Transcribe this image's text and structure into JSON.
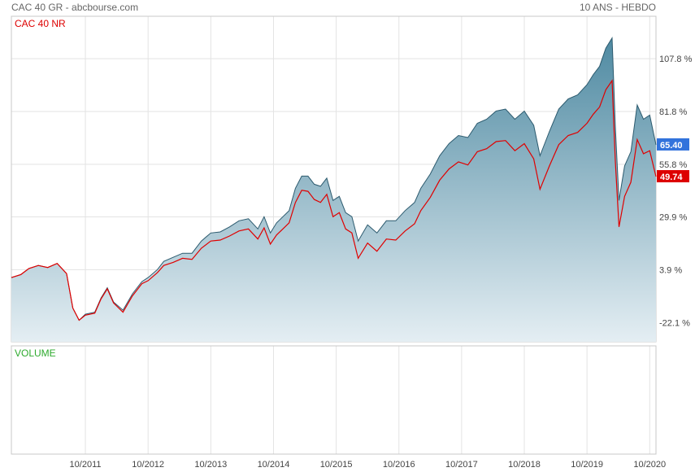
{
  "header": {
    "title": "CAC 40 GR - abcbourse.com",
    "period": "10 ANS - HEBDO"
  },
  "colors": {
    "gr_line": "#2c5a6e",
    "gr_fill_top": "#4f8aa2",
    "gr_fill_bottom": "#e4eef3",
    "nr_line": "#e00000",
    "gr_tag": "#3273dc",
    "nr_tag": "#dd0000",
    "volume_label": "#2eaa2e",
    "nr_label": "#dd0000",
    "grid": "#e3e3e3"
  },
  "chart_data": {
    "type": "area",
    "title": "CAC 40 GR - abcbourse.com",
    "subtitle": "10 ANS - HEBDO",
    "y_unit": "%",
    "ylim": [
      -31.6,
      128.7
    ],
    "y_ticks": [
      107.8,
      81.8,
      55.8,
      29.9,
      3.9,
      -22.1
    ],
    "y_tick_labels": [
      "107.8 %",
      "81.8 %",
      "55.8 %",
      "29.9 %",
      "3.9 %",
      "-22.1 %"
    ],
    "x_ticks": [
      "10/2011",
      "10/2012",
      "10/2013",
      "10/2014",
      "10/2015",
      "10/2016",
      "10/2017",
      "10/2018",
      "10/2019",
      "10/2020"
    ],
    "x_range": [
      2010.57,
      2020.85
    ],
    "series": [
      {
        "name": "CAC 40 GR",
        "last_value": "65.40",
        "points": [
          [
            2010.57,
            0.0
          ],
          [
            2010.72,
            1.5
          ],
          [
            2010.85,
            4.5
          ],
          [
            2011.0,
            6.0
          ],
          [
            2011.15,
            5.0
          ],
          [
            2011.3,
            7.0
          ],
          [
            2011.45,
            2.0
          ],
          [
            2011.55,
            -15.0
          ],
          [
            2011.65,
            -21.0
          ],
          [
            2011.75,
            -18.0
          ],
          [
            2011.9,
            -17.0
          ],
          [
            2012.0,
            -10.0
          ],
          [
            2012.1,
            -5.0
          ],
          [
            2012.2,
            -12.0
          ],
          [
            2012.35,
            -16.0
          ],
          [
            2012.5,
            -8.0
          ],
          [
            2012.65,
            -2.0
          ],
          [
            2012.75,
            0.0
          ],
          [
            2012.9,
            4.0
          ],
          [
            2013.0,
            8.0
          ],
          [
            2013.15,
            10.0
          ],
          [
            2013.3,
            12.0
          ],
          [
            2013.45,
            12.0
          ],
          [
            2013.6,
            18.0
          ],
          [
            2013.75,
            22.0
          ],
          [
            2013.9,
            22.5
          ],
          [
            2014.05,
            25.0
          ],
          [
            2014.2,
            28.0
          ],
          [
            2014.35,
            29.0
          ],
          [
            2014.5,
            24.0
          ],
          [
            2014.6,
            30.0
          ],
          [
            2014.7,
            22.0
          ],
          [
            2014.8,
            27.0
          ],
          [
            2014.9,
            30.0
          ],
          [
            2015.0,
            33.0
          ],
          [
            2015.1,
            44.0
          ],
          [
            2015.2,
            50.0
          ],
          [
            2015.3,
            50.0
          ],
          [
            2015.4,
            46.0
          ],
          [
            2015.5,
            45.0
          ],
          [
            2015.6,
            49.0
          ],
          [
            2015.7,
            38.0
          ],
          [
            2015.8,
            40.0
          ],
          [
            2015.9,
            32.0
          ],
          [
            2016.0,
            30.0
          ],
          [
            2016.1,
            18.0
          ],
          [
            2016.25,
            26.0
          ],
          [
            2016.4,
            22.0
          ],
          [
            2016.55,
            28.0
          ],
          [
            2016.7,
            28.0
          ],
          [
            2016.85,
            33.0
          ],
          [
            2017.0,
            37.0
          ],
          [
            2017.1,
            44.0
          ],
          [
            2017.25,
            51.0
          ],
          [
            2017.4,
            60.0
          ],
          [
            2017.55,
            66.0
          ],
          [
            2017.7,
            70.0
          ],
          [
            2017.85,
            69.0
          ],
          [
            2018.0,
            76.0
          ],
          [
            2018.15,
            78.0
          ],
          [
            2018.3,
            82.0
          ],
          [
            2018.45,
            83.0
          ],
          [
            2018.6,
            78.0
          ],
          [
            2018.75,
            82.0
          ],
          [
            2018.9,
            75.0
          ],
          [
            2019.0,
            60.0
          ],
          [
            2019.15,
            72.0
          ],
          [
            2019.3,
            83.0
          ],
          [
            2019.45,
            88.0
          ],
          [
            2019.6,
            90.0
          ],
          [
            2019.75,
            95.0
          ],
          [
            2019.85,
            100.0
          ],
          [
            2019.95,
            104.0
          ],
          [
            2020.05,
            113.0
          ],
          [
            2020.15,
            118.0
          ],
          [
            2020.2,
            75.0
          ],
          [
            2020.26,
            38.0
          ],
          [
            2020.35,
            55.0
          ],
          [
            2020.45,
            62.0
          ],
          [
            2020.55,
            85.0
          ],
          [
            2020.65,
            78.0
          ],
          [
            2020.75,
            80.0
          ],
          [
            2020.85,
            65.4
          ]
        ]
      },
      {
        "name": "CAC 40 NR",
        "last_value": "49.74",
        "points": [
          [
            2010.57,
            0.0
          ],
          [
            2010.72,
            1.5
          ],
          [
            2010.85,
            4.5
          ],
          [
            2011.0,
            6.0
          ],
          [
            2011.15,
            5.0
          ],
          [
            2011.3,
            7.0
          ],
          [
            2011.45,
            2.0
          ],
          [
            2011.55,
            -15.0
          ],
          [
            2011.65,
            -21.0
          ],
          [
            2011.75,
            -18.5
          ],
          [
            2011.9,
            -17.5
          ],
          [
            2012.0,
            -10.5
          ],
          [
            2012.1,
            -5.5
          ],
          [
            2012.2,
            -12.5
          ],
          [
            2012.35,
            -17.0
          ],
          [
            2012.5,
            -9.0
          ],
          [
            2012.65,
            -3.0
          ],
          [
            2012.75,
            -1.5
          ],
          [
            2012.9,
            2.5
          ],
          [
            2013.0,
            6.0
          ],
          [
            2013.15,
            7.5
          ],
          [
            2013.3,
            9.5
          ],
          [
            2013.45,
            9.0
          ],
          [
            2013.6,
            14.5
          ],
          [
            2013.75,
            18.0
          ],
          [
            2013.9,
            18.5
          ],
          [
            2014.05,
            20.5
          ],
          [
            2014.2,
            23.0
          ],
          [
            2014.35,
            24.0
          ],
          [
            2014.5,
            19.0
          ],
          [
            2014.6,
            24.5
          ],
          [
            2014.7,
            16.5
          ],
          [
            2014.8,
            21.0
          ],
          [
            2014.9,
            24.0
          ],
          [
            2015.0,
            27.0
          ],
          [
            2015.1,
            37.0
          ],
          [
            2015.2,
            43.0
          ],
          [
            2015.3,
            42.5
          ],
          [
            2015.4,
            38.5
          ],
          [
            2015.5,
            37.0
          ],
          [
            2015.6,
            41.0
          ],
          [
            2015.7,
            30.0
          ],
          [
            2015.8,
            32.0
          ],
          [
            2015.9,
            24.0
          ],
          [
            2016.0,
            22.0
          ],
          [
            2016.1,
            9.5
          ],
          [
            2016.25,
            17.0
          ],
          [
            2016.4,
            13.0
          ],
          [
            2016.55,
            19.0
          ],
          [
            2016.7,
            18.5
          ],
          [
            2016.85,
            23.0
          ],
          [
            2017.0,
            26.5
          ],
          [
            2017.1,
            33.0
          ],
          [
            2017.25,
            39.5
          ],
          [
            2017.4,
            48.0
          ],
          [
            2017.55,
            53.5
          ],
          [
            2017.7,
            57.0
          ],
          [
            2017.85,
            55.5
          ],
          [
            2018.0,
            62.0
          ],
          [
            2018.15,
            63.5
          ],
          [
            2018.3,
            67.0
          ],
          [
            2018.45,
            67.5
          ],
          [
            2018.6,
            62.5
          ],
          [
            2018.75,
            66.0
          ],
          [
            2018.9,
            58.5
          ],
          [
            2019.0,
            43.5
          ],
          [
            2019.15,
            55.0
          ],
          [
            2019.3,
            65.5
          ],
          [
            2019.45,
            70.0
          ],
          [
            2019.6,
            71.5
          ],
          [
            2019.75,
            76.0
          ],
          [
            2019.85,
            80.5
          ],
          [
            2019.95,
            84.0
          ],
          [
            2020.05,
            92.5
          ],
          [
            2020.15,
            97.0
          ],
          [
            2020.2,
            58.0
          ],
          [
            2020.26,
            25.0
          ],
          [
            2020.35,
            40.0
          ],
          [
            2020.45,
            47.0
          ],
          [
            2020.55,
            68.0
          ],
          [
            2020.65,
            61.0
          ],
          [
            2020.75,
            62.5
          ],
          [
            2020.85,
            49.74
          ]
        ]
      }
    ],
    "legend": [
      "CAC 40 NR"
    ],
    "volume_label": "VOLUME",
    "grid": true
  }
}
